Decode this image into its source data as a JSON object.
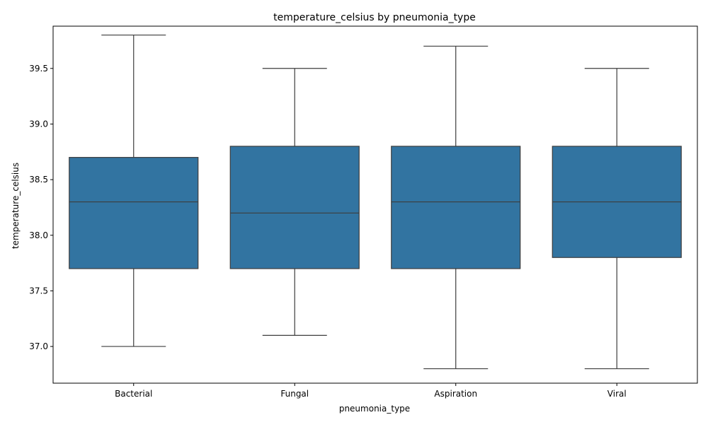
{
  "chart_data": {
    "type": "box",
    "title": "temperature_celsius by pneumonia_type",
    "xlabel": "pneumonia_type",
    "ylabel": "temperature_celsius",
    "ylim": [
      36.67,
      39.88
    ],
    "yticks": [
      37.0,
      37.5,
      38.0,
      38.5,
      39.0,
      39.5
    ],
    "ytick_labels": [
      "37.0",
      "37.5",
      "38.0",
      "38.5",
      "39.0",
      "39.5"
    ],
    "categories": [
      "Bacterial",
      "Fungal",
      "Aspiration",
      "Viral"
    ],
    "boxes": [
      {
        "category": "Bacterial",
        "whisker_low": 37.0,
        "q1": 37.7,
        "median": 38.3,
        "q3": 38.7,
        "whisker_high": 39.8
      },
      {
        "category": "Fungal",
        "whisker_low": 37.1,
        "q1": 37.7,
        "median": 38.2,
        "q3": 38.8,
        "whisker_high": 39.5
      },
      {
        "category": "Aspiration",
        "whisker_low": 36.8,
        "q1": 37.7,
        "median": 38.3,
        "q3": 38.8,
        "whisker_high": 39.7
      },
      {
        "category": "Viral",
        "whisker_low": 36.8,
        "q1": 37.8,
        "median": 38.3,
        "q3": 38.8,
        "whisker_high": 39.5
      }
    ],
    "grid": false,
    "legend": "none",
    "colors": {
      "box_fill": "#3274a1",
      "line": "#3d3d3d",
      "axis": "#000000"
    }
  }
}
